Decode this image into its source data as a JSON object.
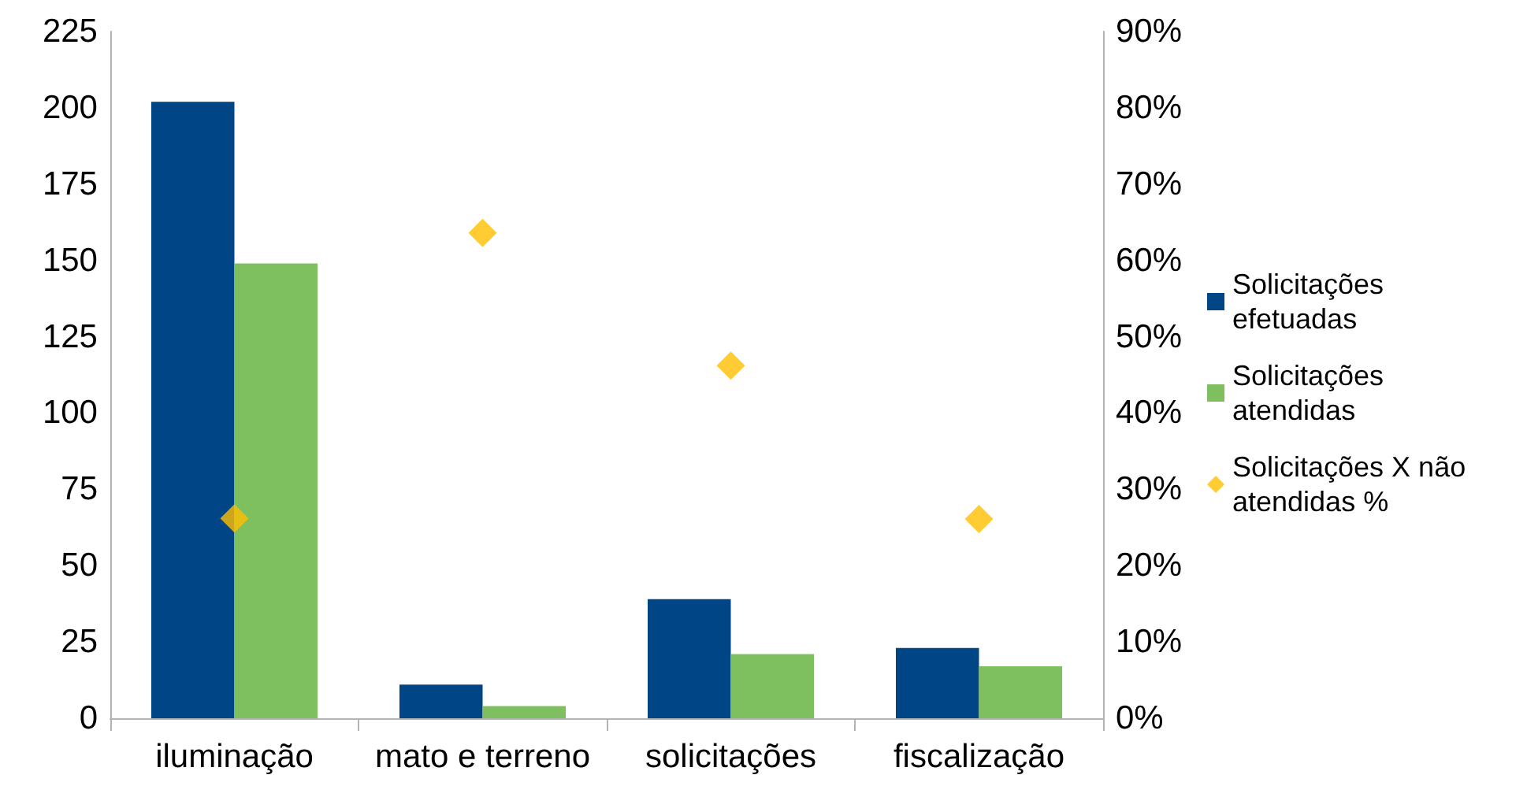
{
  "chart_data": {
    "type": "bar",
    "categories": [
      "iluminação",
      "mato e terreno",
      "solicitações",
      "fiscalização"
    ],
    "series": [
      {
        "name": "Solicitações efetuadas",
        "color": "#004586",
        "values": [
          202,
          11,
          39,
          23
        ]
      },
      {
        "name": "Solicitações atendidas",
        "color": "#7ebf5f",
        "values": [
          149,
          4,
          21,
          17
        ]
      },
      {
        "name": "Solicitações X não atendidas %",
        "type": "scatter",
        "axis": "y2",
        "marker": "diamond",
        "color": "#ffbf00",
        "x": [
          "iluminação",
          "mato e terreno",
          "solicitações",
          "fiscalização"
        ],
        "values": [
          26.2,
          63.6,
          46.2,
          26.1
        ]
      }
    ],
    "ylim": [
      0,
      225
    ],
    "yticks": [
      0,
      25,
      50,
      75,
      100,
      125,
      150,
      175,
      200,
      225
    ],
    "y2lim": [
      0,
      90
    ],
    "y2ticks": [
      {
        "value": 0,
        "label": "0%"
      },
      {
        "value": 10,
        "label": "10%"
      },
      {
        "value": 20,
        "label": "20%"
      },
      {
        "value": 30,
        "label": "30%"
      },
      {
        "value": 40,
        "label": "40%"
      },
      {
        "value": 50,
        "label": "50%"
      },
      {
        "value": 60,
        "label": "60%"
      },
      {
        "value": 70,
        "label": "70%"
      },
      {
        "value": 80,
        "label": "80%"
      },
      {
        "value": 90,
        "label": "90%"
      }
    ],
    "grid": false,
    "legend": "right"
  }
}
